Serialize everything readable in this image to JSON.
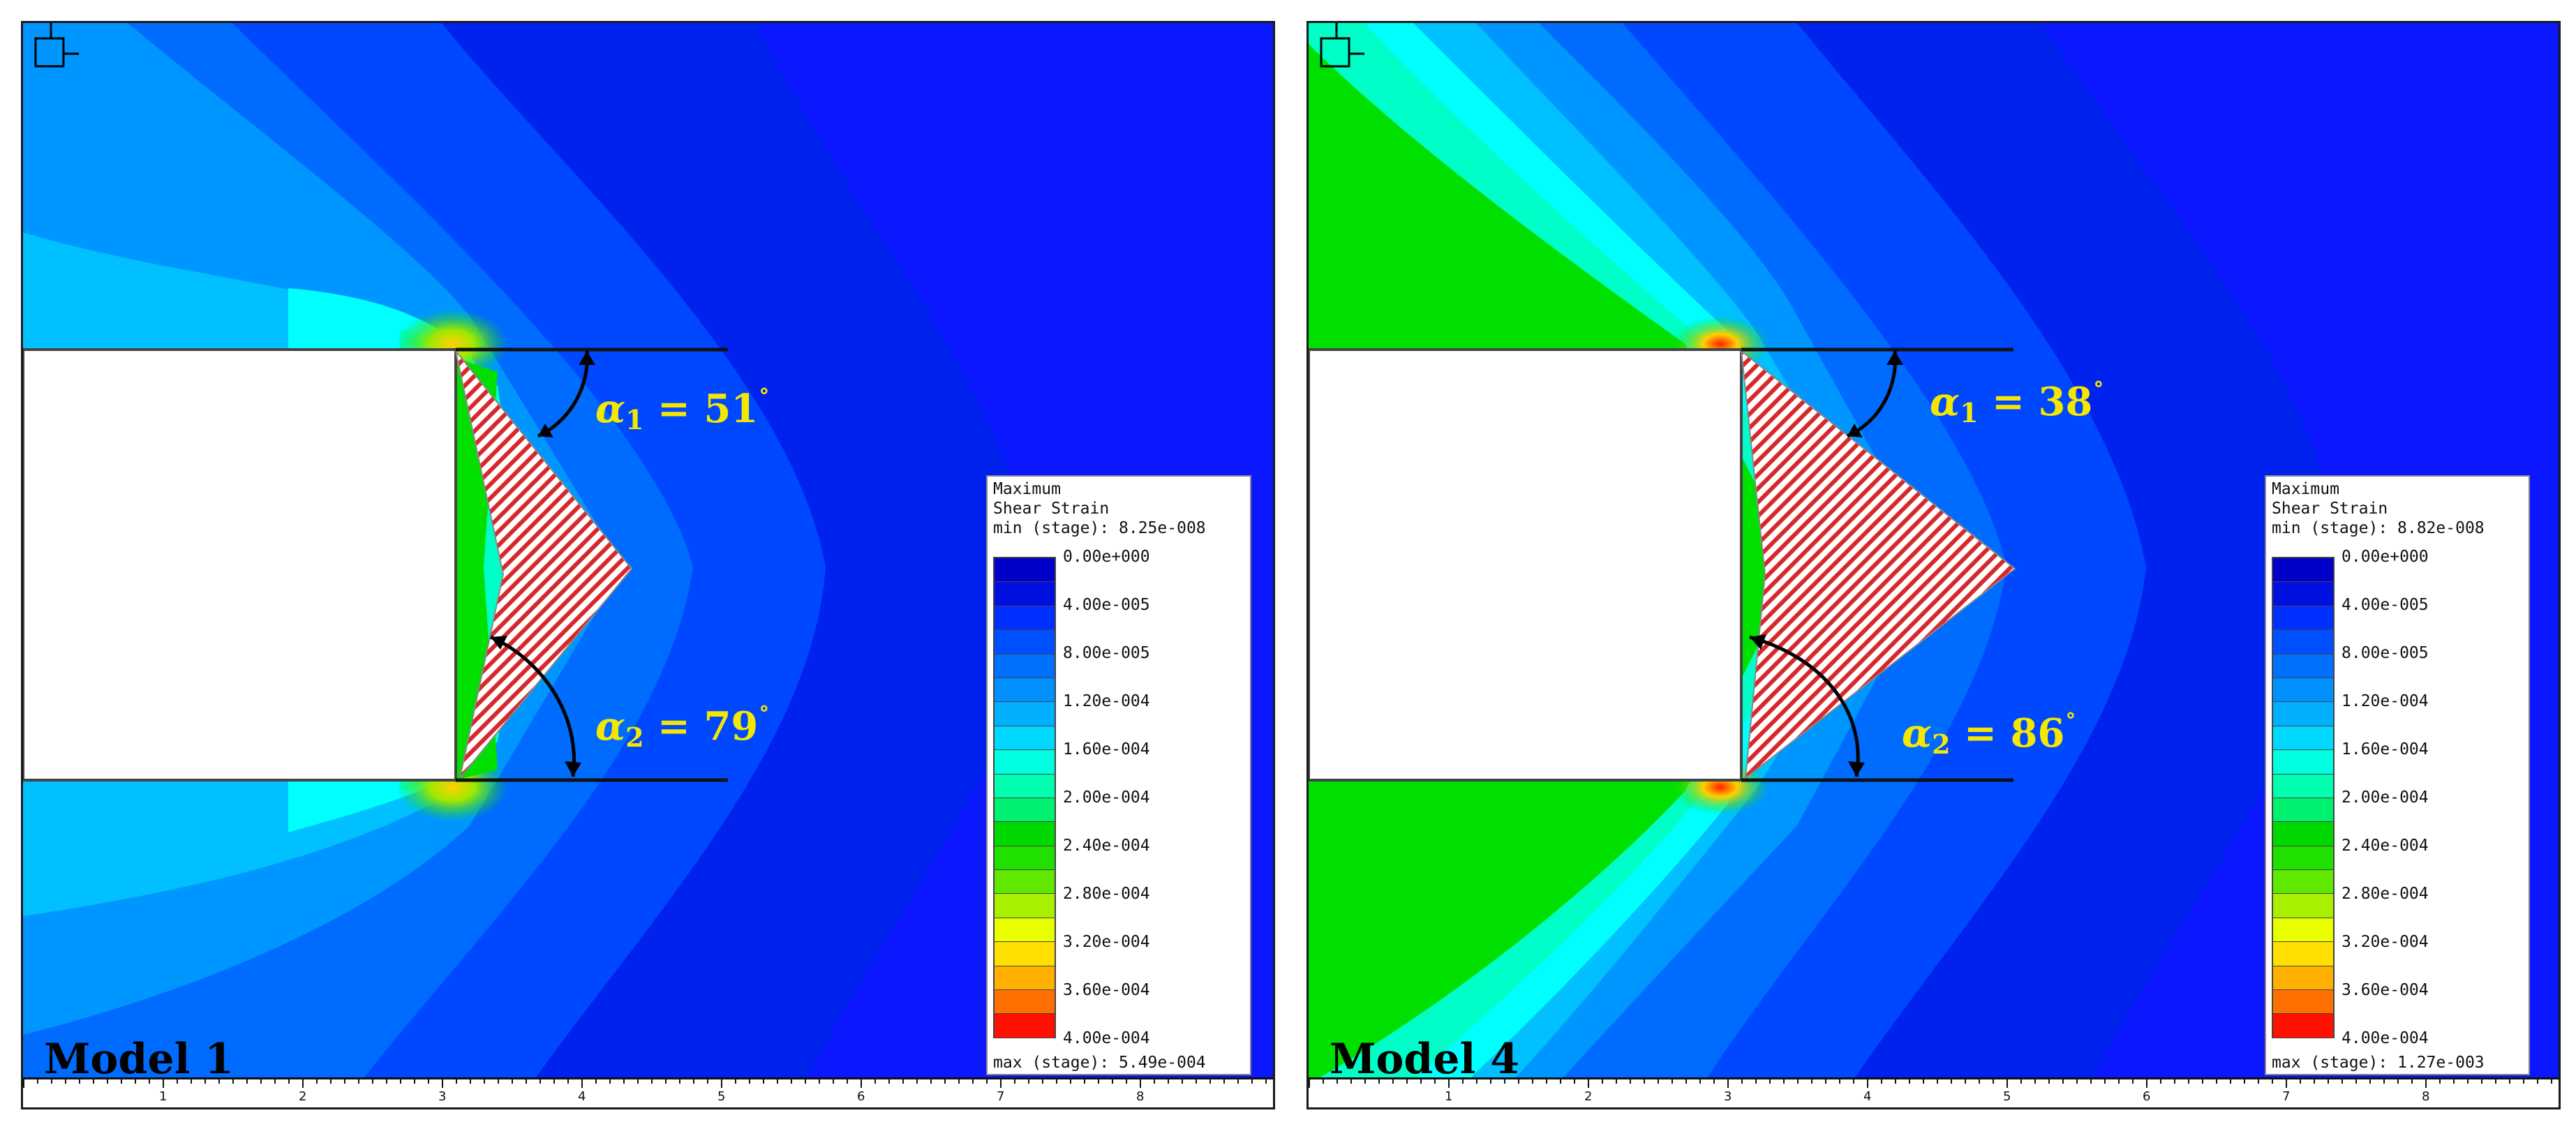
{
  "colors": {
    "scale": [
      "#0010d8",
      "#0022ee",
      "#0048ff",
      "#006cff",
      "#0096ff",
      "#00c0ff",
      "#00ffff",
      "#00ffc8",
      "#00f090",
      "#00e000",
      "#00c800",
      "#40e000",
      "#a0e800",
      "#e8ff00",
      "#ffd800",
      "#ffa000",
      "#ff6000",
      "#ff0000"
    ]
  },
  "panels": [
    {
      "model_label": "Model 1",
      "alpha1": {
        "symbol": "α",
        "sub": "1",
        "value": " = 51",
        "unit": "˚"
      },
      "alpha2": {
        "symbol": "α",
        "sub": "2",
        "value": " = 79",
        "unit": "˚"
      },
      "legend": {
        "title1": "Maximum",
        "title2": "Shear Strain",
        "min": "min (stage): 8.25e-008",
        "max": "max (stage): 5.49e-004",
        "ticks": [
          "0.00e+000",
          "4.00e-005",
          "8.00e-005",
          "1.20e-004",
          "1.60e-004",
          "2.00e-004",
          "2.40e-004",
          "2.80e-004",
          "3.20e-004",
          "3.60e-004",
          "4.00e-004"
        ]
      },
      "ruler": [
        "1",
        "2",
        "3",
        "4",
        "5",
        "6",
        "7",
        "8"
      ]
    },
    {
      "model_label": "Model 4",
      "alpha1": {
        "symbol": "α",
        "sub": "1",
        "value": " = 38",
        "unit": "˚"
      },
      "alpha2": {
        "symbol": "α",
        "sub": "2",
        "value": " = 86",
        "unit": "˚"
      },
      "legend": {
        "title1": "Maximum",
        "title2": "Shear Strain",
        "min": "min (stage): 8.82e-008",
        "max": "max (stage): 1.27e-003",
        "ticks": [
          "0.00e+000",
          "4.00e-005",
          "8.00e-005",
          "1.20e-004",
          "1.60e-004",
          "2.00e-004",
          "2.40e-004",
          "2.80e-004",
          "3.20e-004",
          "3.60e-004",
          "4.00e-004"
        ]
      },
      "ruler": [
        "1",
        "2",
        "3",
        "4",
        "5",
        "6",
        "7",
        "8"
      ]
    }
  ]
}
